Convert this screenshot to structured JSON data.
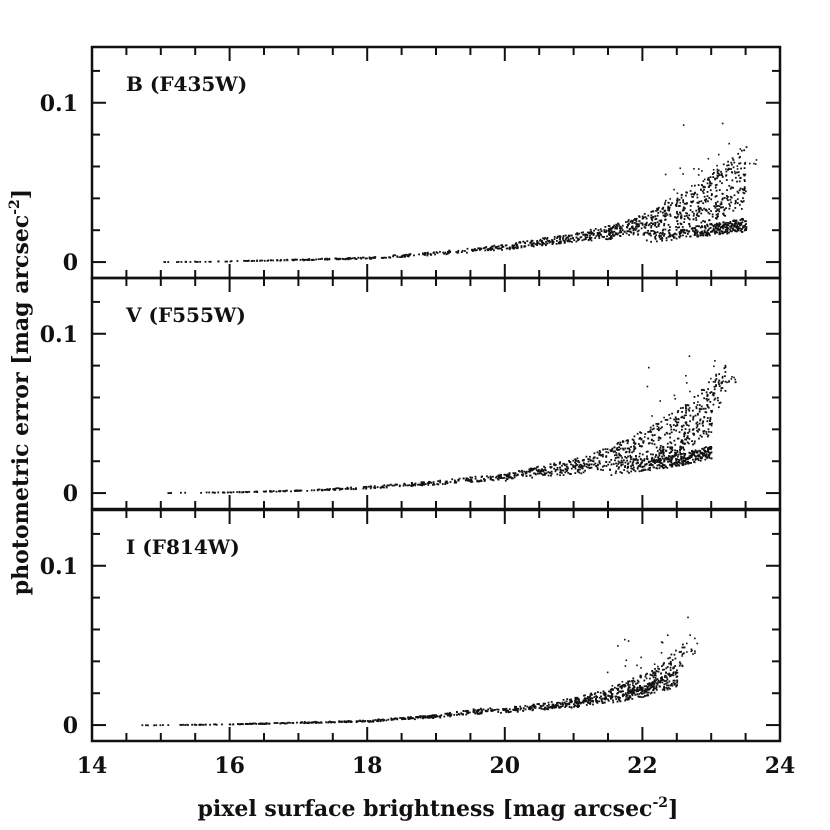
{
  "chart_data": {
    "type": "scatter",
    "xlabel": "pixel surface brightness [mag arcsec",
    "xlabel_sup": "-2",
    "xlabel_tail": "]",
    "ylabel": "photometric error [mag arcsec",
    "ylabel_sup": "-2",
    "ylabel_tail": "]",
    "xlim": [
      14,
      24
    ],
    "x_ticks": [
      "14",
      "16",
      "18",
      "20",
      "22",
      "24"
    ],
    "panels": [
      {
        "label": "B (F435W)",
        "ylim": [
          -0.01,
          0.135
        ],
        "y_ticks": [
          "0",
          "0.1"
        ],
        "series": [
          {
            "x": [
              15.0,
              16.0,
              17.0,
              18.0,
              19.0,
              20.0,
              21.0,
              21.5,
              22.0,
              22.5,
              23.0,
              23.5
            ],
            "y": [
              0.0005,
              0.001,
              0.002,
              0.003,
              0.006,
              0.01,
              0.016,
              0.02,
              0.026,
              0.035,
              0.048,
              0.062
            ]
          },
          {
            "x": [
              19.5,
              20.0,
              20.5,
              21.0,
              21.5,
              22.0,
              22.5,
              23.0,
              23.5
            ],
            "y": [
              0.008,
              0.01,
              0.013,
              0.016,
              0.018,
              0.021,
              0.025,
              0.032,
              0.042
            ]
          },
          {
            "x": [
              22.0,
              22.5,
              23.0,
              23.5
            ],
            "y": [
              0.015,
              0.018,
              0.021,
              0.024
            ]
          }
        ],
        "outlier_max": 0.092
      },
      {
        "label": "V (F555W)",
        "ylim": [
          -0.01,
          0.135
        ],
        "y_ticks": [
          "0",
          "0.1"
        ],
        "series": [
          {
            "x": [
              15.0,
              16.0,
              17.0,
              18.0,
              19.0,
              20.0,
              20.5,
              21.0,
              21.5,
              22.0,
              22.5,
              23.0,
              23.2
            ],
            "y": [
              0.0005,
              0.001,
              0.002,
              0.004,
              0.007,
              0.011,
              0.015,
              0.019,
              0.025,
              0.034,
              0.045,
              0.062,
              0.07
            ]
          },
          {
            "x": [
              20.0,
              20.5,
              21.0,
              21.5,
              22.0,
              22.5,
              23.0
            ],
            "y": [
              0.01,
              0.013,
              0.015,
              0.018,
              0.022,
              0.03,
              0.045
            ]
          },
          {
            "x": [
              21.5,
              22.0,
              22.5,
              23.0
            ],
            "y": [
              0.014,
              0.017,
              0.021,
              0.026
            ]
          }
        ],
        "outlier_max": 0.1
      },
      {
        "label": "I (F814W)",
        "ylim": [
          -0.01,
          0.135
        ],
        "y_ticks": [
          "0",
          "0.1"
        ],
        "series": [
          {
            "x": [
              14.4,
              15.0,
              16.0,
              17.0,
              18.0,
              19.0,
              19.5,
              20.0,
              20.5,
              21.0,
              21.5,
              22.0,
              22.3,
              22.6
            ],
            "y": [
              0.0003,
              0.0005,
              0.001,
              0.002,
              0.003,
              0.006,
              0.009,
              0.01,
              0.012,
              0.015,
              0.02,
              0.028,
              0.035,
              0.045
            ]
          },
          {
            "x": [
              20.5,
              21.0,
              21.5,
              22.0,
              22.5
            ],
            "y": [
              0.011,
              0.014,
              0.017,
              0.022,
              0.03
            ]
          }
        ],
        "outlier_max": 0.075
      }
    ]
  }
}
